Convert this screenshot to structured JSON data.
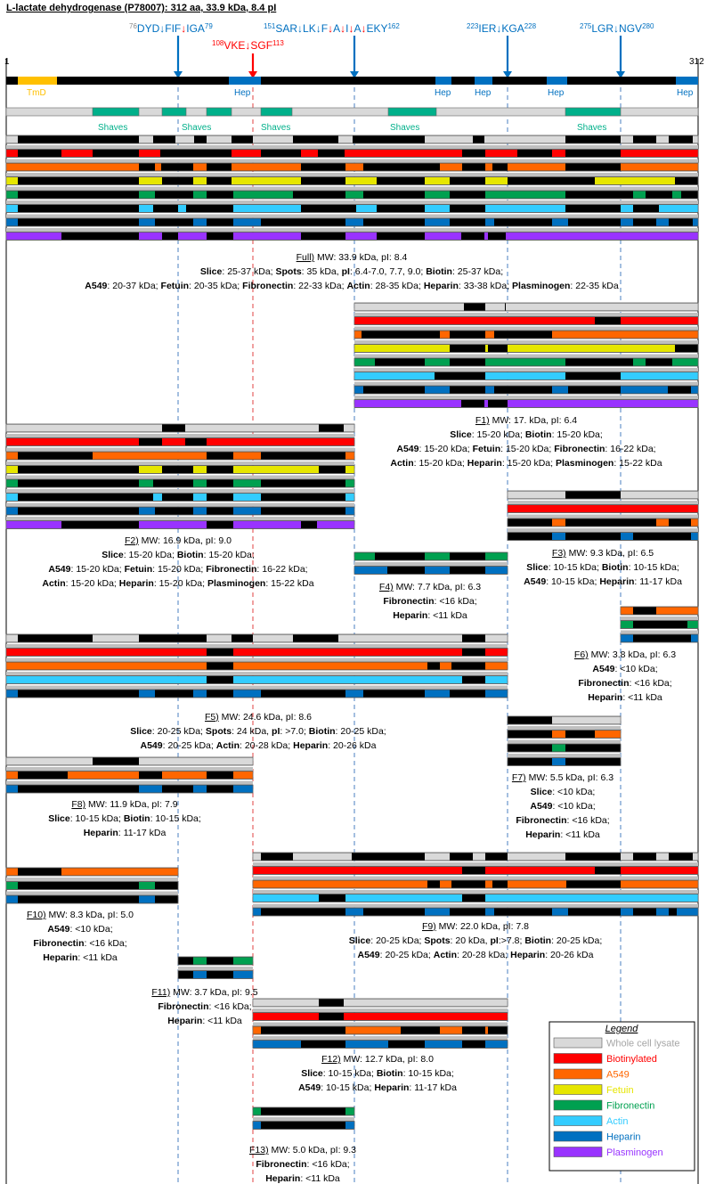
{
  "title": "L-lactate dehydrogenase (P78007): 312 aa, 33.9 kDa, 8.4 pI",
  "seq_start": "1",
  "seq_end": "312",
  "colors": {
    "whole_cell_lysate": "#d9d9d9",
    "biotinylated": "#ff0000",
    "a549": "#ff6600",
    "fetuin": "#e6e600",
    "fibronectin": "#00a050",
    "actin": "#33ccff",
    "heparin": "#0070c0",
    "plasminogen": "#9933ff",
    "tmd": "#ffc000",
    "shaves": "#00b08a",
    "site_blue": "#0070c0",
    "site_red": "#ff0000"
  },
  "cleavage_sites": [
    {
      "label_pre": "DYD",
      "label_mid": "FIF",
      "label_post": "IGA",
      "sup_start": "76",
      "sup_end": "79",
      "mid_arrow": "blue",
      "post_arrow": "red",
      "color": "blue"
    },
    {
      "label_pre": "VKE",
      "label_post": "SGF",
      "sup_start": "108",
      "sup_end": "113",
      "post_arrow": "red",
      "color": "red"
    },
    {
      "label": "SAR↓LK↓F↓A↓I↓A↓EKY",
      "sup_start": "151",
      "sup_end": "162",
      "color": "blue"
    },
    {
      "label_pre": "IER",
      "label_post": "KGA",
      "sup_start": "223",
      "sup_end": "228",
      "color": "blue"
    },
    {
      "label_pre": "LGR",
      "label_post": "NGV",
      "sup_start": "275",
      "sup_end": "280",
      "color": "blue"
    }
  ],
  "protein_bar_labels": {
    "tmd": "TmD",
    "hep": "Hep",
    "shaves": "Shaves"
  },
  "fragments": [
    {
      "id": "full",
      "heading": "Full) MW: 33.9 kDa, pI: 8.4",
      "lines": [
        "Slice: 25-37 kDa; Spots: 35 kDa, pI: 6.4-7.0, 7.7, 9.0; Biotin: 25-37 kDa;",
        "A549: 20-37 kDa; Fetuin: 20-35 kDa; Fibronectin: 22-33 kDa; Actin: 28-35 kDa; Heparin: 33-38 kDa; Plasminogen: 22-35 kDa"
      ]
    },
    {
      "id": "f1",
      "heading": "F1) MW: 17. kDa, pI: 6.4",
      "lines": [
        "Slice: 15-20 kDa; Biotin: 15-20 kDa;",
        "A549: 15-20 kDa; Fetuin: 15-20 kDa; Fibronectin: 16-22 kDa;",
        "Actin: 15-20 kDa; Heparin: 15-20 kDa; Plasminogen: 15-22 kDa"
      ]
    },
    {
      "id": "f2",
      "heading": "F2) MW: 16.9 kDa, pI: 9.0",
      "lines": [
        "Slice: 15-20 kDa; Biotin: 15-20 kDa;",
        "A549: 15-20 kDa; Fetuin: 15-20 kDa; Fibronectin: 16-22 kDa;",
        "Actin: 15-20 kDa; Heparin: 15-20 kDa; Plasminogen: 15-22 kDa"
      ]
    },
    {
      "id": "f3",
      "heading": "F3) MW: 9.3 kDa, pI: 6.5",
      "lines": [
        "Slice: 10-15 kDa; Biotin: 10-15 kDa;",
        "A549: 10-15 kDa; Heparin: 11-17 kDa"
      ]
    },
    {
      "id": "f4",
      "heading": "F4) MW: 7.7 kDa, pI: 6.3",
      "lines": [
        "Fibronectin: <16 kDa;",
        "Heparin: <11 kDa"
      ]
    },
    {
      "id": "f5",
      "heading": "F5) MW: 24.6 kDa, pI: 8.6",
      "lines": [
        "Slice: 20-25 kDa; Spots: 24 kDa, pI: >7.0; Biotin: 20-25 kDa;",
        "A549: 20-25 kDa; Actin: 20-28 kDa; Heparin: 20-26 kDa"
      ]
    },
    {
      "id": "f6",
      "heading": "F6) MW: 3.8 kDa, pI: 6.3",
      "lines": [
        "A549: <10 kDa;",
        "Fibronectin: <16 kDa;",
        "Heparin: <11 kDa"
      ]
    },
    {
      "id": "f7",
      "heading": "F7) MW: 5.5 kDa, pI: 6.3",
      "lines": [
        "Slice: <10 kDa;",
        "A549: <10 kDa;",
        "Fibronectin: <16 kDa;",
        "Heparin: <11 kDa"
      ]
    },
    {
      "id": "f8",
      "heading": "F8) MW: 11.9 kDa, pI: 7.9",
      "lines": [
        "Slice: 10-15 kDa; Biotin: 10-15 kDa;",
        "Heparin: 11-17 kDa"
      ]
    },
    {
      "id": "f9",
      "heading": "F9) MW: 22.0 kDa, pI: 7.8",
      "lines": [
        "Slice: 20-25 kDa; Spots: 20 kDa, pI:>7.8; Biotin: 20-25 kDa;",
        "A549: 20-25 kDa; Actin: 20-28 kDa; Heparin: 20-26 kDa"
      ]
    },
    {
      "id": "f10",
      "heading": "F10) MW: 8.3 kDa, pI: 5.0",
      "lines": [
        "A549: <10 kDa;",
        "Fibronectin: <16 kDa;",
        "Heparin: <11 kDa"
      ]
    },
    {
      "id": "f11",
      "heading": "F11) MW: 3.7 kDa, pI: 9.5",
      "lines": [
        "Fibronectin: <16 kDa;",
        "Heparin: <11 kDa"
      ]
    },
    {
      "id": "f12",
      "heading": "F12) MW: 12.7 kDa, pI: 8.0",
      "lines": [
        "Slice: 10-15 kDa; Biotin: 10-15 kDa;",
        "A549: 10-15 kDa; Heparin: 11-17 kDa"
      ]
    },
    {
      "id": "f13",
      "heading": "F13) MW: 5.0 kDa, pI: 9.3",
      "lines": [
        "Fibronectin: <16 kDa;",
        "Heparin: <11 kDa"
      ]
    }
  ],
  "legend": {
    "title": "Legend",
    "items": [
      {
        "key": "whole_cell_lysate",
        "label": "Whole cell lysate"
      },
      {
        "key": "biotinylated",
        "label": "Biotinylated"
      },
      {
        "key": "a549",
        "label": "A549"
      },
      {
        "key": "fetuin",
        "label": "Fetuin"
      },
      {
        "key": "fibronectin",
        "label": "Fibronectin"
      },
      {
        "key": "actin",
        "label": "Actin"
      },
      {
        "key": "heparin",
        "label": "Heparin"
      },
      {
        "key": "plasminogen",
        "label": "Plasminogen"
      }
    ]
  }
}
